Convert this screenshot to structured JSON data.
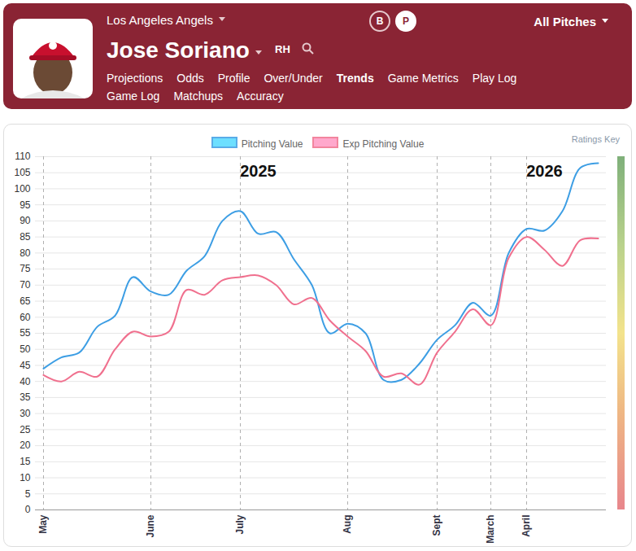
{
  "header": {
    "team": "Los Angeles Angels",
    "player": "Jose Soriano",
    "hand": "RH",
    "toggles": [
      "B",
      "P"
    ],
    "active_toggle": "P",
    "selector": "All Pitches",
    "nav": [
      [
        "Projections",
        "Odds",
        "Profile",
        "Over/Under",
        "Trends",
        "Game Metrics",
        "Play Log"
      ],
      [
        "Game Log",
        "Matchups",
        "Accuracy"
      ]
    ],
    "active_nav": "Trends"
  },
  "chart_data": {
    "type": "line",
    "ratings_key": "Ratings Key",
    "legend": "top",
    "grid": true,
    "categories": [
      "May",
      null,
      null,
      null,
      null,
      null,
      "June",
      null,
      null,
      null,
      null,
      "July",
      null,
      null,
      null,
      null,
      null,
      "Aug",
      null,
      null,
      null,
      null,
      "Sept",
      null,
      null,
      "March",
      null,
      "April",
      null,
      null,
      null,
      null
    ],
    "series": [
      {
        "name": "Pitching Value",
        "color": "#3d9ee4",
        "values": [
          44,
          47.5,
          49,
          57,
          60.5,
          72.5,
          68,
          67,
          74.5,
          79,
          90,
          93,
          86,
          86.5,
          78,
          70,
          55,
          58,
          55,
          40.5,
          40.5,
          45.5,
          53,
          57.5,
          64.5,
          60.5,
          80,
          87.5,
          87,
          93,
          106.5,
          108
        ]
      },
      {
        "name": "Exp Pitching Value",
        "color": "#f0708e",
        "values": [
          42,
          40,
          43,
          41.5,
          50,
          55.5,
          54,
          55.5,
          68.5,
          67,
          71.5,
          72.5,
          73,
          70,
          64,
          66,
          59,
          54,
          49.5,
          41.5,
          42.5,
          39,
          49,
          55.5,
          62.5,
          57.5,
          78.5,
          85,
          81,
          76,
          84,
          84.5
        ]
      }
    ],
    "annotations": [
      {
        "text": "2025",
        "x": 12,
        "y": 105.5
      },
      {
        "text": "2026",
        "x": 28,
        "y": 105.5
      }
    ],
    "ylim": [
      0,
      110
    ],
    "yticks": [
      0,
      5,
      10,
      15,
      20,
      25,
      30,
      35,
      40,
      45,
      50,
      55,
      60,
      65,
      70,
      75,
      80,
      85,
      90,
      95,
      100,
      105,
      110
    ]
  }
}
